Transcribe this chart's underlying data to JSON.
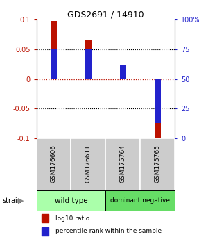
{
  "title": "GDS2691 / 14910",
  "samples": [
    "GSM176606",
    "GSM176611",
    "GSM175764",
    "GSM175765"
  ],
  "log10_ratio": [
    0.098,
    0.065,
    0.015,
    -0.101
  ],
  "percentile_rank": [
    75,
    75,
    62,
    13
  ],
  "bar_width": 0.18,
  "blue_bar_width": 0.18,
  "ylim": [
    -0.1,
    0.1
  ],
  "yticks_left": [
    -0.1,
    -0.05,
    0,
    0.05,
    0.1
  ],
  "yticks_right": [
    0,
    25,
    50,
    75,
    100
  ],
  "red_color": "#bb1100",
  "blue_color": "#2222cc",
  "group1_color": "#aaffaa",
  "group2_color": "#66dd66",
  "label_bg": "#cccccc",
  "legend_red": "log10 ratio",
  "legend_blue": "percentile rank within the sample"
}
